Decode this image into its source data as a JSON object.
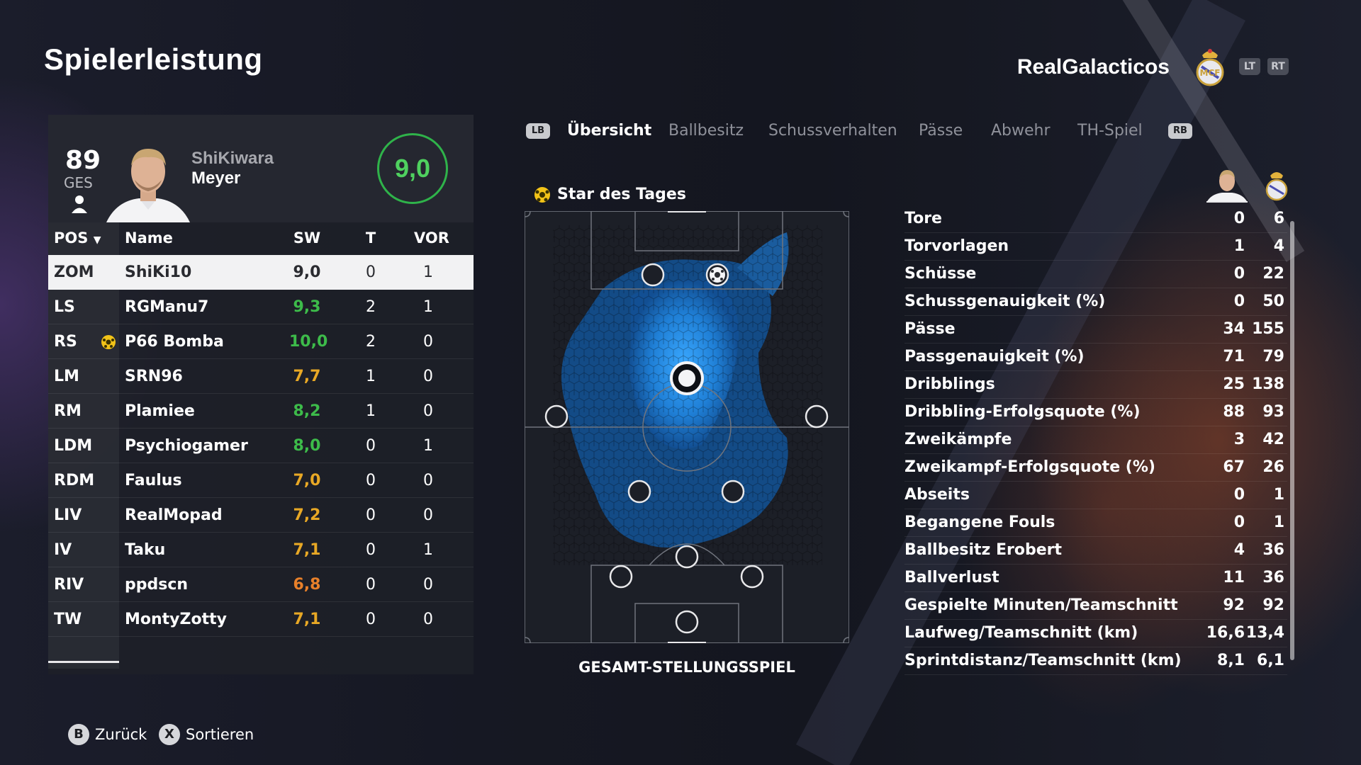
{
  "page": {
    "title": "Spielerleistung"
  },
  "club": {
    "name": "RealGalacticos",
    "lt_label": "LT",
    "rt_label": "RT"
  },
  "player_card": {
    "overall": "89",
    "overall_label": "GES",
    "name_line1": "ShiKiwara",
    "name_line2": "Meyer",
    "rating": "9,0",
    "rating_color": "#2fb34a"
  },
  "table": {
    "headers": {
      "pos": "POS",
      "name": "Name",
      "sw": "SW",
      "t": "T",
      "vor": "VOR"
    },
    "rows": [
      {
        "pos": "ZOM",
        "name": "ShiKi10",
        "sw": "9,0",
        "sw_color": "#2a2b30",
        "t": "0",
        "vor": "1",
        "selected": true
      },
      {
        "pos": "LS",
        "name": "RGManu7",
        "sw": "9,3",
        "sw_color": "#3dbb4a",
        "t": "2",
        "vor": "1"
      },
      {
        "pos": "RS",
        "name": "P66 Bomba",
        "sw": "10,0",
        "sw_color": "#3dbb4a",
        "t": "2",
        "vor": "0",
        "star": true
      },
      {
        "pos": "LM",
        "name": "SRN96",
        "sw": "7,7",
        "sw_color": "#e8a825",
        "t": "1",
        "vor": "0"
      },
      {
        "pos": "RM",
        "name": "Plamiee",
        "sw": "8,2",
        "sw_color": "#3dbb4a",
        "t": "1",
        "vor": "0"
      },
      {
        "pos": "LDM",
        "name": "Psychiogamer",
        "sw": "8,0",
        "sw_color": "#3dbb4a",
        "t": "0",
        "vor": "1"
      },
      {
        "pos": "RDM",
        "name": "Faulus",
        "sw": "7,0",
        "sw_color": "#e8a825",
        "t": "0",
        "vor": "0"
      },
      {
        "pos": "LIV",
        "name": "RealMopad",
        "sw": "7,2",
        "sw_color": "#e8a825",
        "t": "0",
        "vor": "0"
      },
      {
        "pos": "IV",
        "name": "Taku",
        "sw": "7,1",
        "sw_color": "#e8a825",
        "t": "0",
        "vor": "1"
      },
      {
        "pos": "RIV",
        "name": "ppdscn",
        "sw": "6,8",
        "sw_color": "#e8802a",
        "t": "0",
        "vor": "0"
      },
      {
        "pos": "TW",
        "name": "MontyZotty",
        "sw": "7,1",
        "sw_color": "#e8a825",
        "t": "0",
        "vor": "0"
      }
    ]
  },
  "tabs": {
    "lb_label": "LB",
    "rb_label": "RB",
    "items": [
      "Übersicht",
      "Ballbesitz",
      "Schussverhalten",
      "Pässe",
      "Abwehr",
      "TH-Spiel"
    ]
  },
  "pitch": {
    "star_label": "Star des Tages",
    "caption": "GESAMT-STELLUNGSSPIEL"
  },
  "stats": {
    "rows": [
      {
        "label": "Tore",
        "player": "0",
        "team": "6"
      },
      {
        "label": "Torvorlagen",
        "player": "1",
        "team": "4"
      },
      {
        "label": "Schüsse",
        "player": "0",
        "team": "22"
      },
      {
        "label": "Schussgenauigkeit (%)",
        "player": "0",
        "team": "50"
      },
      {
        "label": "Pässe",
        "player": "34",
        "team": "155"
      },
      {
        "label": "Passgenauigkeit (%)",
        "player": "71",
        "team": "79"
      },
      {
        "label": "Dribblings",
        "player": "25",
        "team": "138"
      },
      {
        "label": "Dribbling-Erfolgsquote (%)",
        "player": "88",
        "team": "93"
      },
      {
        "label": "Zweikämpfe",
        "player": "3",
        "team": "42"
      },
      {
        "label": "Zweikampf-Erfolgsquote (%)",
        "player": "67",
        "team": "26"
      },
      {
        "label": "Abseits",
        "player": "0",
        "team": "1"
      },
      {
        "label": "Begangene Fouls",
        "player": "0",
        "team": "1"
      },
      {
        "label": "Ballbesitz Erobert",
        "player": "4",
        "team": "36"
      },
      {
        "label": "Ballverlust",
        "player": "11",
        "team": "36"
      },
      {
        "label": "Gespielte Minuten/Teamschnitt",
        "player": "92",
        "team": "92"
      },
      {
        "label": "Laufweg/Teamschnitt (km)",
        "player": "16,6",
        "team": "13,4"
      },
      {
        "label": "Sprintdistanz/Teamschnitt (km)",
        "player": "8,1",
        "team": "6,1"
      }
    ]
  },
  "footer": {
    "back_key": "B",
    "back_label": "Zurück",
    "sort_key": "X",
    "sort_label": "Sortieren"
  }
}
